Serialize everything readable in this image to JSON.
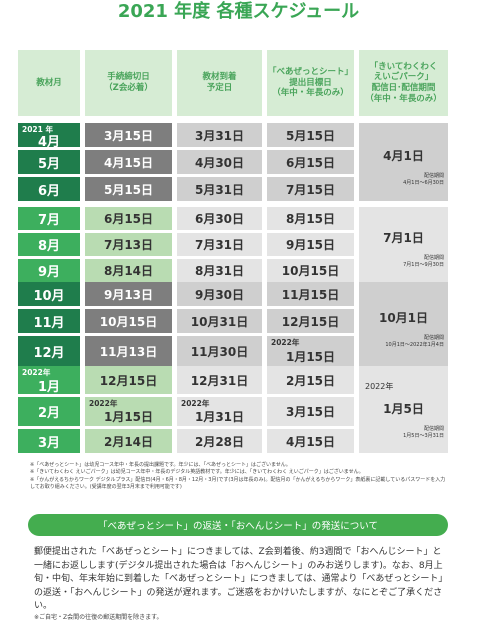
{
  "title": "2021 年度 各種スケジュール",
  "table": {
    "headers": [
      "教材月",
      "手続締切日\n（Z会必着）",
      "教材到着\n予定日",
      "「べあぜっとシート」\n提出目標日\n（年中・年長のみ）",
      "「きいてわくわく\nえいごパーク」\n配信日･配信期間\n（年中・年長のみ）"
    ],
    "groups": [
      {
        "rows": [
          {
            "month_year": "2021 年",
            "month": "4月",
            "deadline": "3月15日",
            "arrival": "3月31日",
            "sheet": "5月15日"
          },
          {
            "month": "5月",
            "deadline": "4月15日",
            "arrival": "4月30日",
            "sheet": "6月15日"
          },
          {
            "month": "6月",
            "deadline": "5月15日",
            "arrival": "5月31日",
            "sheet": "7月15日"
          }
        ],
        "park": {
          "date": "4月1日",
          "period_label": "配信期間",
          "period": "4月1日～6月30日"
        }
      },
      {
        "rows": [
          {
            "month": "7月",
            "deadline": "6月15日",
            "arrival": "6月30日",
            "sheet": "8月15日"
          },
          {
            "month": "8月",
            "deadline": "7月13日",
            "arrival": "7月31日",
            "sheet": "9月15日"
          },
          {
            "month": "9月",
            "deadline": "8月14日",
            "arrival": "8月31日",
            "sheet": "10月15日"
          }
        ],
        "park": {
          "date": "7月1日",
          "period_label": "配信期間",
          "period": "7月1日～9月30日"
        }
      },
      {
        "rows": [
          {
            "month": "10月",
            "deadline": "9月13日",
            "arrival": "9月30日",
            "sheet": "11月15日"
          },
          {
            "month": "11月",
            "deadline": "10月15日",
            "arrival": "10月31日",
            "sheet": "12月15日"
          },
          {
            "month": "12月",
            "deadline": "11月13日",
            "arrival": "11月30日",
            "sheet_year": "2022年",
            "sheet": "1月15日"
          }
        ],
        "park": {
          "date": "10月1日",
          "period_label": "配信期間",
          "period": "10月1日～2022年1月4日"
        }
      },
      {
        "rows": [
          {
            "month_year": "2022年",
            "month": "1月",
            "deadline": "12月15日",
            "arrival": "12月31日",
            "sheet": "2月15日"
          },
          {
            "month": "2月",
            "deadline_year": "2022年",
            "deadline": "1月15日",
            "arrival_year": "2022年",
            "arrival": "1月31日",
            "sheet": "3月15日"
          },
          {
            "month": "3月",
            "deadline": "2月14日",
            "arrival": "2月28日",
            "sheet": "4月15日"
          }
        ],
        "park": {
          "year": "2022年",
          "date": "1月5日",
          "period_label": "配信期間",
          "period": "1月5日～3月31日"
        }
      }
    ]
  },
  "notes": [
    "※「べあぜっとシート」は幼児コース年中・年長の提出課題です。年少には、「べあぜっとシート」はございません。",
    "※「きいてわくわく えいごパーク」は幼児コース年中・年長のデジタル英語教材です。年少には、「きいてわくわく えいごパーク」はございません。",
    "※「かんがえるちからワーク デジタルプラス」配信日(4月・6月・8月・12月・3月)です(3月は年長のみ)。配信月の「かんがえるちからワーク」表紙裏に記載しているパスワードを入力してお取り組みください。(受講年度の翌年3月末まで利用可能です)"
  ],
  "banner": "「べあぜっとシート」の返送・「おへんじシート」の発送について",
  "body": "郵便提出された「べあぜっとシート」につきましては、Z会到着後、約3週間で「おへんじシート」と一緒にお返しします(デジタル提出された場合は「おへんじシート」のみお送りします)。なお、8月上旬・中旬、年末年始に到着した「べあぜっとシート」につきましては、通常より「べあぜっとシート」の返送・「おへんじシート」の発送が遅れます。ご迷惑をおかけいたしますが、なにとぞご了承ください。",
  "footnote": "※ご自宅・Z会間の往復の郵送期間を除きます。"
}
